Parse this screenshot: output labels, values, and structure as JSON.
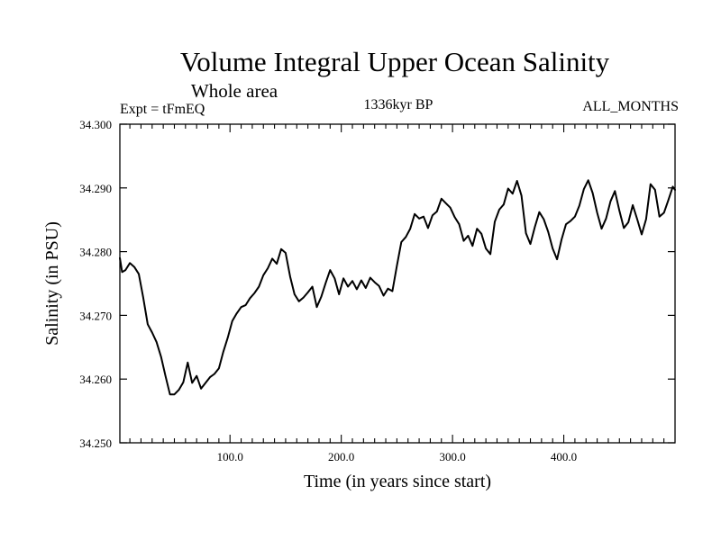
{
  "chart_data": {
    "type": "line",
    "title": "Volume Integral Upper Ocean Salinity",
    "subtitle": "Whole area",
    "left_label": "Expt = tFmEQ",
    "center_label": "1336kyr BP",
    "right_label": "ALL_MONTHS",
    "xlabel": "Time (in years since start)",
    "ylabel": "Salinity (in PSU)",
    "xlim": [
      1,
      500
    ],
    "ylim": [
      34.25,
      34.3
    ],
    "x_ticks": [
      100,
      200,
      300,
      400
    ],
    "x_tick_labels": [
      "100.0",
      "200.0",
      "300.0",
      "400.0"
    ],
    "y_ticks": [
      34.25,
      34.26,
      34.27,
      34.28,
      34.29,
      34.3
    ],
    "y_tick_labels": [
      "34.250",
      "34.260",
      "34.270",
      "34.280",
      "34.290",
      "34.300"
    ],
    "grid": false,
    "series": [
      {
        "name": "salinity",
        "color": "#000000",
        "x": [
          1,
          3,
          6,
          10,
          14,
          18,
          22,
          26,
          30,
          34,
          38,
          42,
          46,
          50,
          54,
          58,
          62,
          66,
          70,
          74,
          78,
          82,
          86,
          90,
          94,
          98,
          102,
          106,
          110,
          114,
          118,
          122,
          126,
          130,
          134,
          138,
          142,
          146,
          150,
          154,
          158,
          162,
          166,
          170,
          174,
          178,
          182,
          186,
          190,
          194,
          198,
          202,
          206,
          210,
          214,
          218,
          222,
          226,
          230,
          234,
          238,
          242,
          246,
          250,
          254,
          258,
          262,
          266,
          270,
          274,
          278,
          282,
          286,
          290,
          294,
          298,
          302,
          306,
          310,
          314,
          318,
          322,
          326,
          330,
          334,
          338,
          342,
          346,
          350,
          354,
          358,
          362,
          366,
          370,
          374,
          378,
          382,
          386,
          390,
          394,
          398,
          402,
          406,
          410,
          414,
          418,
          422,
          426,
          430,
          434,
          438,
          442,
          446,
          450,
          454,
          458,
          462,
          466,
          470,
          474,
          478,
          482,
          486,
          490,
          494,
          498,
          500
        ],
        "values": [
          34.279,
          34.2768,
          34.2771,
          34.2782,
          34.2776,
          34.2765,
          34.2728,
          34.2686,
          34.2673,
          34.2658,
          34.2635,
          34.2605,
          34.2576,
          34.2576,
          34.2583,
          34.2595,
          34.2626,
          34.2594,
          34.2605,
          34.2585,
          34.2594,
          34.2603,
          34.2608,
          34.2617,
          34.2643,
          34.2665,
          34.2691,
          34.2703,
          34.2713,
          34.2716,
          34.2727,
          34.2735,
          34.2745,
          34.2763,
          34.2774,
          34.2789,
          34.2781,
          34.2804,
          34.2798,
          34.2761,
          34.2733,
          34.2722,
          34.2728,
          34.2736,
          34.2745,
          34.2713,
          34.2729,
          34.2751,
          34.2771,
          34.2758,
          34.2733,
          34.2758,
          34.2745,
          34.2754,
          34.2741,
          34.2755,
          34.2743,
          34.2759,
          34.2752,
          34.2746,
          34.2731,
          34.2742,
          34.2738,
          34.2778,
          34.2815,
          34.2823,
          34.2836,
          34.2859,
          34.2852,
          34.2855,
          34.2837,
          34.2857,
          34.2863,
          34.2883,
          34.2876,
          34.2869,
          34.2854,
          34.2843,
          34.2817,
          34.2825,
          34.2809,
          34.2836,
          34.2828,
          34.2805,
          34.2796,
          34.2847,
          34.2866,
          34.2874,
          34.2899,
          34.2891,
          34.2911,
          34.2888,
          34.2829,
          34.2812,
          34.2839,
          34.2862,
          34.2851,
          34.2831,
          34.2805,
          34.2788,
          34.2819,
          34.2843,
          34.2848,
          34.2855,
          34.2872,
          34.2898,
          34.2912,
          34.2892,
          34.2861,
          34.2836,
          34.2852,
          34.2879,
          34.2895,
          34.2864,
          34.2837,
          34.2846,
          34.2873,
          34.2851,
          34.2827,
          34.2851,
          34.2906,
          34.2897,
          34.2855,
          34.2861,
          34.2881,
          34.2902,
          34.2897
        ]
      }
    ]
  }
}
